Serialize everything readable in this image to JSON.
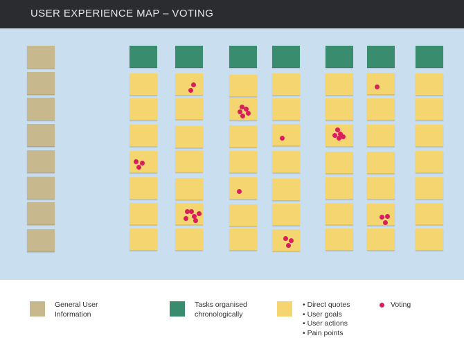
{
  "header": {
    "title": "USER EXPERIENCE MAP – VOTING"
  },
  "colors": {
    "header_bg": "#2b2c30",
    "board_bg": "#c9deee",
    "general_user_info": "#c8b88e",
    "task": "#3a8c6e",
    "sticky_note": "#f5d56f",
    "vote_dot": "#d81e5b"
  },
  "legend": {
    "general_user_info_label": "General User Information",
    "tasks_label": "Tasks organised chronologically",
    "sticky_note_items": [
      "• Direct quotes",
      "• User goals",
      "• User actions",
      "• Pain points"
    ],
    "voting_label": "Voting"
  },
  "board": {
    "general_info_cards": 8,
    "task_columns": [
      {
        "task_card": true,
        "note_count": 7,
        "votes": [
          0,
          0,
          0,
          3,
          0,
          0,
          0
        ]
      },
      {
        "task_card": true,
        "note_count": 7,
        "votes": [
          2,
          0,
          0,
          0,
          0,
          6,
          0
        ]
      },
      {
        "task_card": true,
        "note_count": 7,
        "votes": [
          0,
          5,
          0,
          0,
          1,
          0,
          0
        ]
      },
      {
        "task_card": true,
        "note_count": 7,
        "votes": [
          0,
          0,
          1,
          0,
          0,
          0,
          3
        ]
      },
      {
        "task_card": true,
        "note_count": 7,
        "votes": [
          0,
          0,
          5,
          0,
          0,
          0,
          0
        ]
      },
      {
        "task_card": true,
        "note_count": 7,
        "votes": [
          1,
          0,
          0,
          0,
          0,
          3,
          0
        ]
      },
      {
        "task_card": true,
        "note_count": 7,
        "votes": [
          0,
          0,
          0,
          0,
          0,
          0,
          0
        ]
      }
    ]
  }
}
